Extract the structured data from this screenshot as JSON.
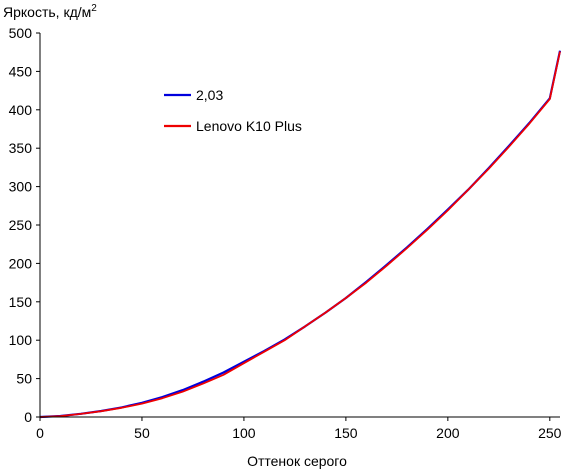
{
  "chart_data": {
    "type": "line",
    "title": "",
    "xlabel": "Оттенок серого",
    "ylabel": "Яркость, кд/м",
    "ylabel_superscript": "2",
    "xlim": [
      0,
      255
    ],
    "ylim": [
      0,
      500
    ],
    "xticks": [
      0,
      50,
      100,
      150,
      200,
      250
    ],
    "yticks": [
      0,
      50,
      100,
      150,
      200,
      250,
      300,
      350,
      400,
      450,
      500
    ],
    "grid": false,
    "legend_position": "upper-left",
    "series": [
      {
        "name": "2,03",
        "color": "#0000dd",
        "x": [
          0,
          10,
          20,
          30,
          40,
          50,
          60,
          70,
          80,
          90,
          100,
          110,
          120,
          130,
          140,
          150,
          160,
          170,
          180,
          190,
          200,
          210,
          220,
          230,
          240,
          250,
          255
        ],
        "y": [
          0,
          1.3,
          4.2,
          7.8,
          12.5,
          18.5,
          26,
          35,
          46,
          58,
          72,
          86,
          101,
          118,
          136,
          155,
          176,
          198,
          221,
          245,
          270,
          296,
          324,
          353,
          383,
          415,
          477
        ]
      },
      {
        "name": "Lenovo K10 Plus",
        "color": "#ee0000",
        "x": [
          0,
          10,
          20,
          30,
          40,
          50,
          60,
          70,
          80,
          90,
          100,
          110,
          120,
          130,
          140,
          150,
          160,
          170,
          180,
          190,
          200,
          210,
          220,
          230,
          240,
          250,
          255
        ],
        "y": [
          0,
          1.2,
          4,
          7.5,
          12,
          17.5,
          24.5,
          33,
          43.5,
          55,
          70,
          85,
          100,
          118,
          136,
          155,
          175,
          197,
          220,
          244,
          269,
          296,
          323,
          352,
          382,
          414,
          476
        ]
      }
    ]
  }
}
